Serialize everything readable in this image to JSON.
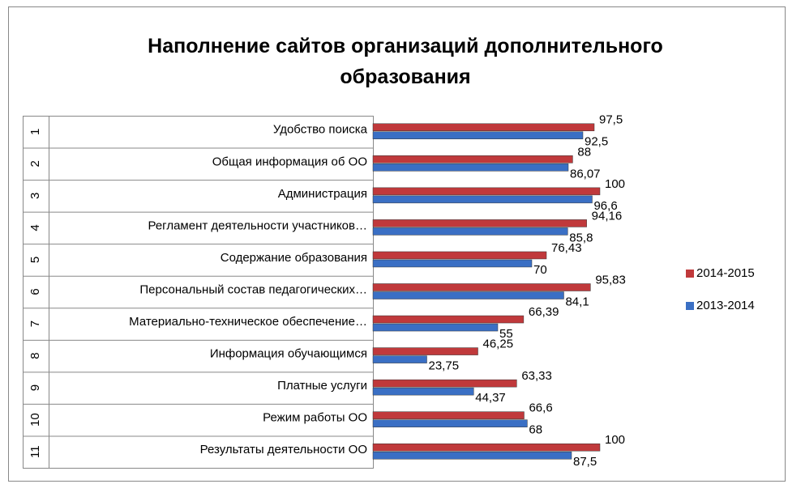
{
  "chart_data": {
    "type": "bar",
    "orientation": "horizontal",
    "title": "Наполнение сайтов  организаций дополнительного образования",
    "category_numbers": [
      "1",
      "2",
      "3",
      "4",
      "5",
      "6",
      "7",
      "8",
      "9",
      "10",
      "11"
    ],
    "categories": [
      "Удобство поиска",
      "Общая информация об ОО",
      "Администрация",
      "Регламент деятельности участников…",
      "Содержание образования",
      "Персональный состав педагогических…",
      "Материально-техническое обеспечение…",
      "Информация обучающимся",
      "Платные услуги",
      "Режим работы ОО",
      "Результаты деятельности ОО"
    ],
    "series": [
      {
        "name": "2014-2015",
        "color": "#c0393b",
        "values": [
          97.5,
          88,
          100,
          94.16,
          76.43,
          95.83,
          66.39,
          46.25,
          63.33,
          66.6,
          100
        ],
        "value_labels": [
          "97,5",
          "88",
          "100",
          "94,16",
          "76,43",
          "95,83",
          "66,39",
          "46,25",
          "63,33",
          "66,6",
          "100"
        ]
      },
      {
        "name": "2013-2014",
        "color": "#3a6fc4",
        "values": [
          92.5,
          86.07,
          96.6,
          85.8,
          70,
          84.1,
          55,
          23.75,
          44.37,
          68,
          87.5
        ],
        "value_labels": [
          "92,5",
          "86,07",
          "96,6",
          "85,8",
          "70",
          "84,1",
          "55",
          "23,75",
          "44,37",
          "68",
          "87,5"
        ]
      }
    ],
    "xlim": [
      0,
      100
    ],
    "legend": "right"
  }
}
